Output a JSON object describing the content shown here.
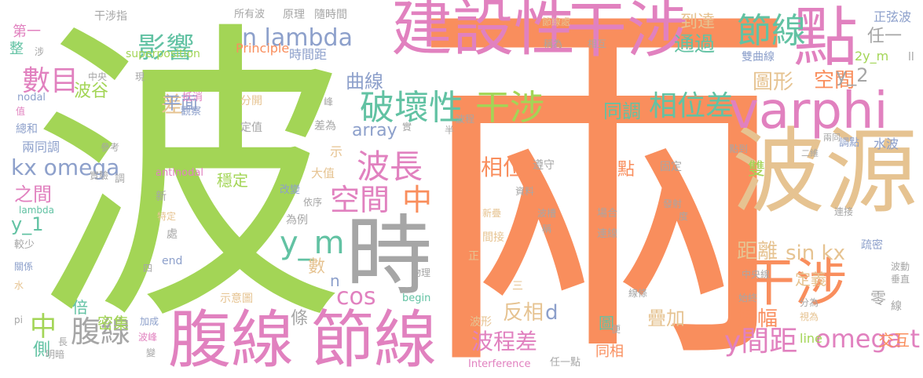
{
  "words": [
    {
      "text": "兩",
      "color": "#f98e5d"
    },
    {
      "text": "波",
      "color": "#a3d556"
    },
    {
      "text": "波源",
      "color": "#e6c391"
    },
    {
      "text": "腹線",
      "color": "#e181bf"
    },
    {
      "text": "節線",
      "color": "#e181bf"
    },
    {
      "text": "時",
      "color": "#a6a6a6"
    },
    {
      "text": "建設性",
      "color": "#e181bf"
    },
    {
      "text": "干涉",
      "color": "#e181bf"
    },
    {
      "text": "varphi",
      "color": "#e181bf"
    },
    {
      "text": "點",
      "color": "#e181bf"
    },
    {
      "text": "干涉",
      "color": "#f98e5d"
    },
    {
      "text": "破壞性",
      "color": "#62c2a3"
    },
    {
      "text": "干涉",
      "color": "#a3d556"
    },
    {
      "text": "節線",
      "color": "#62c2a3"
    },
    {
      "text": "波長",
      "color": "#e181bf"
    },
    {
      "text": "腹線",
      "color": "#a6a6a6"
    },
    {
      "text": "影響",
      "color": "#62c2a3"
    },
    {
      "text": "數目",
      "color": "#e181bf"
    },
    {
      "text": "y_m",
      "color": "#62c2a3"
    },
    {
      "text": "空間",
      "color": "#e181bf"
    },
    {
      "text": "中",
      "color": "#f98e5d"
    },
    {
      "text": "相位差",
      "color": "#62c2a3"
    },
    {
      "text": "n lambda",
      "color": "#8da0cb"
    },
    {
      "text": "kx omega",
      "color": "#8da0cb"
    },
    {
      "text": "cos",
      "color": "#e181bf"
    },
    {
      "text": "y間距",
      "color": "#e181bf"
    },
    {
      "text": "omega t",
      "color": "#e181bf"
    },
    {
      "text": "sin kx",
      "color": "#e6c391"
    },
    {
      "text": "中",
      "color": "#a3d556"
    },
    {
      "text": "曲線",
      "color": "#8da0cb"
    },
    {
      "text": "差",
      "color": "#e6c391"
    },
    {
      "text": "平面",
      "color": "#8da0cb"
    },
    {
      "text": "array",
      "color": "#8da0cb"
    },
    {
      "text": "波谷",
      "color": "#a3d556"
    },
    {
      "text": "之間",
      "color": "#e181bf"
    },
    {
      "text": "y_1",
      "color": "#62c2a3"
    },
    {
      "text": "波程差",
      "color": "#e181bf"
    },
    {
      "text": "疊加",
      "color": "#e6c391"
    },
    {
      "text": "振幅",
      "color": "#f98e5d"
    },
    {
      "text": "距離",
      "color": "#e6c391"
    },
    {
      "text": "相位",
      "color": "#f98e5d"
    },
    {
      "text": "反相",
      "color": "#e6c391"
    },
    {
      "text": "d",
      "color": "#8da0cb"
    },
    {
      "text": "圖形",
      "color": "#e6c391"
    },
    {
      "text": "同調",
      "color": "#62c2a3"
    },
    {
      "text": "空間",
      "color": "#f98e5d"
    },
    {
      "text": "y_2",
      "color": "#a6a6a6"
    },
    {
      "text": "到達",
      "color": "#e6c391"
    },
    {
      "text": "通過",
      "color": "#62c2a3"
    },
    {
      "text": "任一",
      "color": "#a6a6a6"
    },
    {
      "text": "穩定",
      "color": "#a3d556"
    },
    {
      "text": "密集",
      "color": "#a3d556"
    },
    {
      "text": "倍",
      "color": "#62c2a3"
    },
    {
      "text": "側",
      "color": "#62c2a3"
    },
    {
      "text": "條",
      "color": "#a6a6a6"
    },
    {
      "text": "數",
      "color": "#e6c391"
    },
    {
      "text": "n",
      "color": "#8da0cb"
    },
    {
      "text": "示",
      "color": "#e6c391"
    },
    {
      "text": "一點",
      "color": "#f98e5d"
    },
    {
      "text": "雙",
      "color": "#a3d556"
    },
    {
      "text": "零",
      "color": "#a6a6a6"
    },
    {
      "text": "交互",
      "color": "#f98e5d"
    },
    {
      "text": "圖",
      "color": "#62c2a3"
    },
    {
      "text": "同相",
      "color": "#f98e5d"
    },
    {
      "text": "定義",
      "color": "#e6c391"
    },
    {
      "text": "第一",
      "color": "#e181bf"
    },
    {
      "text": "整",
      "color": "#62c2a3"
    },
    {
      "text": "line",
      "color": "#a3d556"
    },
    {
      "text": "superposition",
      "color": "#a3d556"
    },
    {
      "text": "Principle",
      "color": "#f98e5d"
    },
    {
      "text": "時間距",
      "color": "#8da0cb"
    },
    {
      "text": "節線處",
      "color": "#e6c391"
    },
    {
      "text": "正弦波",
      "color": "#8da0cb"
    },
    {
      "text": "2y_m",
      "color": "#a3d556"
    },
    {
      "text": "ll",
      "color": "#a6a6a6"
    },
    {
      "text": "雙曲線",
      "color": "#8da0cb"
    },
    {
      "text": "干涉指",
      "color": "#a6a6a6"
    },
    {
      "text": "所有波",
      "color": "#a6a6a6"
    },
    {
      "text": "原理",
      "color": "#a6a6a6"
    },
    {
      "text": "隨時間",
      "color": "#a6a6a6"
    },
    {
      "text": "涉",
      "color": "#a6a6a6"
    },
    {
      "text": "中央",
      "color": "#a6a6a6"
    },
    {
      "text": "現",
      "color": "#a6a6a6"
    },
    {
      "text": "nodal",
      "color": "#8da0cb"
    },
    {
      "text": "值",
      "color": "#e181bf"
    },
    {
      "text": "總和",
      "color": "#8da0cb"
    },
    {
      "text": "兩同調",
      "color": "#8da0cb"
    },
    {
      "text": "參考",
      "color": "#a6a6a6"
    },
    {
      "text": "實驗",
      "color": "#a6a6a6"
    },
    {
      "text": "調",
      "color": "#a6a6a6"
    },
    {
      "text": "lambda",
      "color": "#62c2a3"
    },
    {
      "text": "抵消",
      "color": "#e181bf"
    },
    {
      "text": "觀察",
      "color": "#8da0cb"
    },
    {
      "text": "分開",
      "color": "#e6c391"
    },
    {
      "text": "定值",
      "color": "#a6a6a6"
    },
    {
      "text": "峰",
      "color": "#a6a6a6"
    },
    {
      "text": "差為",
      "color": "#a6a6a6"
    },
    {
      "text": "實",
      "color": "#a6a6a6"
    },
    {
      "text": "半",
      "color": "#a6a6a6"
    },
    {
      "text": "波程",
      "color": "#a6a6a6"
    },
    {
      "text": "antinodal",
      "color": "#e181bf"
    },
    {
      "text": "大值",
      "color": "#e6c391"
    },
    {
      "text": "新",
      "color": "#a6a6a6"
    },
    {
      "text": "改變",
      "color": "#8da0cb"
    },
    {
      "text": "依序",
      "color": "#a6a6a6"
    },
    {
      "text": "特定",
      "color": "#e6c391"
    },
    {
      "text": "為例",
      "color": "#a6a6a6"
    },
    {
      "text": "處",
      "color": "#a6a6a6"
    },
    {
      "text": "較少",
      "color": "#a6a6a6"
    },
    {
      "text": "關係",
      "color": "#8da0cb"
    },
    {
      "text": "水",
      "color": "#e6c391"
    },
    {
      "text": "四",
      "color": "#a6a6a6"
    },
    {
      "text": "end",
      "color": "#8da0cb"
    },
    {
      "text": "物理",
      "color": "#a6a6a6"
    },
    {
      "text": "示意圖",
      "color": "#e6c391"
    },
    {
      "text": "begin",
      "color": "#62c2a3"
    },
    {
      "text": "pi",
      "color": "#a6a6a6"
    },
    {
      "text": "加成",
      "color": "#8da0cb"
    },
    {
      "text": "波峰",
      "color": "#e181bf"
    },
    {
      "text": "長",
      "color": "#a6a6a6"
    },
    {
      "text": "明暗",
      "color": "#a6a6a6"
    },
    {
      "text": "變",
      "color": "#a6a6a6"
    },
    {
      "text": "Interference",
      "color": "#e181bf"
    },
    {
      "text": "任一點",
      "color": "#a6a6a6"
    },
    {
      "text": "遵守",
      "color": "#a6a6a6"
    },
    {
      "text": "固定",
      "color": "#a6a6a6"
    },
    {
      "text": "資料",
      "color": "#a6a6a6"
    },
    {
      "text": "新疊",
      "color": "#e6c391"
    },
    {
      "text": "波槽",
      "color": "#a6a6a6"
    },
    {
      "text": "稱",
      "color": "#a6a6a6"
    },
    {
      "text": "間接",
      "color": "#e6c391"
    },
    {
      "text": "正",
      "color": "#e6c391"
    },
    {
      "text": "三",
      "color": "#e6c391"
    },
    {
      "text": "波形",
      "color": "#e6c391"
    },
    {
      "text": "便",
      "color": "#a6a6a6"
    },
    {
      "text": "場合",
      "color": "#a6a6a6"
    },
    {
      "text": "連線",
      "color": "#a6a6a6"
    },
    {
      "text": "發射",
      "color": "#a6a6a6"
    },
    {
      "text": "度",
      "color": "#a6a6a6"
    },
    {
      "text": "連接",
      "color": "#a6a6a6"
    },
    {
      "text": "線條",
      "color": "#a6a6a6"
    },
    {
      "text": "中央線",
      "color": "#a6a6a6"
    },
    {
      "text": "始終",
      "color": "#a6a6a6"
    },
    {
      "text": "分為",
      "color": "#a6a6a6"
    },
    {
      "text": "視為",
      "color": "#e6c391"
    },
    {
      "text": "點到",
      "color": "#a6a6a6"
    },
    {
      "text": "二維",
      "color": "#a6a6a6"
    },
    {
      "text": "兩同",
      "color": "#a6a6a6"
    },
    {
      "text": "調點",
      "color": "#8da0cb"
    },
    {
      "text": "水波",
      "color": "#8da0cb"
    },
    {
      "text": "疏密",
      "color": "#8da0cb"
    },
    {
      "text": "波動",
      "color": "#a6a6a6"
    },
    {
      "text": "垂直",
      "color": "#a6a6a6"
    },
    {
      "text": "線",
      "color": "#a6a6a6"
    },
    {
      "text": "稱為",
      "color": "#a6a6a6"
    },
    {
      "text": "相互",
      "color": "#a6a6a6"
    }
  ]
}
